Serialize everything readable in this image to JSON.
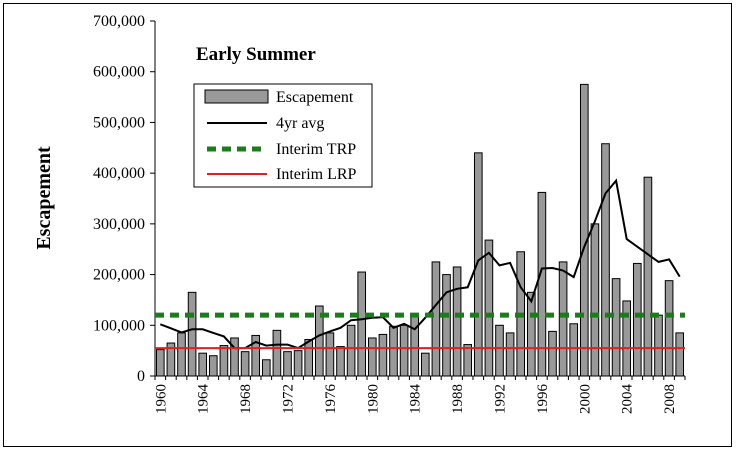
{
  "chart_data": {
    "type": "bar",
    "title": "Early Summer",
    "ylabel": "Escapement",
    "xlabel": "",
    "ylim": [
      0,
      700000
    ],
    "yticks": [
      0,
      100000,
      200000,
      300000,
      400000,
      500000,
      600000,
      700000
    ],
    "ytick_labels": [
      "0",
      "100,000",
      "200,000",
      "300,000",
      "400,000",
      "500,000",
      "600,000",
      "700,000"
    ],
    "xtick_labels": [
      "1960",
      "1964",
      "1968",
      "1972",
      "1976",
      "1980",
      "1984",
      "1988",
      "1992",
      "1996",
      "2000",
      "2004",
      "2008"
    ],
    "x": [
      1960,
      1961,
      1962,
      1963,
      1964,
      1965,
      1966,
      1967,
      1968,
      1969,
      1970,
      1971,
      1972,
      1973,
      1974,
      1975,
      1976,
      1977,
      1978,
      1979,
      1980,
      1981,
      1982,
      1983,
      1984,
      1985,
      1986,
      1987,
      1988,
      1989,
      1990,
      1991,
      1992,
      1993,
      1994,
      1995,
      1996,
      1997,
      1998,
      1999,
      2000,
      2001,
      2002,
      2003,
      2004,
      2005,
      2006,
      2007,
      2008,
      2009
    ],
    "grid": false,
    "legend_position": "upper-left",
    "series": [
      {
        "name": "Escapement",
        "kind": "bar",
        "color": "#999999",
        "values": [
          52000,
          65000,
          85000,
          165000,
          45000,
          40000,
          60000,
          75000,
          48000,
          80000,
          32000,
          90000,
          48000,
          50000,
          72000,
          138000,
          85000,
          58000,
          100000,
          205000,
          75000,
          82000,
          98000,
          100000,
          122000,
          45000,
          225000,
          200000,
          215000,
          62000,
          440000,
          268000,
          100000,
          85000,
          245000,
          165000,
          362000,
          88000,
          225000,
          103000,
          575000,
          300000,
          458000,
          192000,
          148000,
          222000,
          392000,
          120000,
          188000,
          85000
        ]
      },
      {
        "name": "4yr avg",
        "kind": "line",
        "color": "#000000",
        "values": [
          102000,
          94000,
          86000,
          92000,
          92000,
          85000,
          78000,
          55000,
          55000,
          67000,
          60000,
          62000,
          62000,
          55000,
          68000,
          80000,
          88000,
          95000,
          110000,
          112000,
          115000,
          116000,
          95000,
          103000,
          92000,
          115000,
          140000,
          165000,
          172000,
          175000,
          228000,
          243000,
          218000,
          223000,
          175000,
          147000,
          212000,
          213000,
          208000,
          195000,
          255000,
          305000,
          360000,
          385000,
          270000,
          255000,
          240000,
          225000,
          230000,
          196000
        ]
      },
      {
        "name": "Interim TRP",
        "kind": "hline",
        "color": "#1a7d1a",
        "value": 120000
      },
      {
        "name": "Interim LRP",
        "kind": "hline",
        "color": "#e02020",
        "value": 55000
      }
    ]
  }
}
